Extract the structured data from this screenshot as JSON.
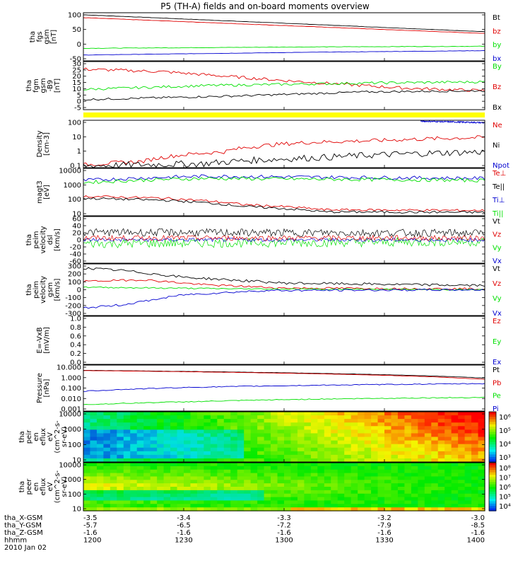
{
  "title": "P5 (TH-A) fields and on-board moments overview",
  "colors": {
    "black": "#000000",
    "red": "#e00000",
    "green": "#00e000",
    "blue": "#0000d0",
    "yellow": "#ffff00",
    "frame": "#000000"
  },
  "chart_data": [
    {
      "type": "line",
      "panel": "fgs",
      "ylabel": [
        "tha",
        "fgs",
        "gsm",
        "[nT]"
      ],
      "yticks": [
        "100",
        "50",
        "0",
        "-50"
      ],
      "ylim": [
        -60,
        105
      ],
      "legend": [
        {
          "name": "Bt",
          "color": "black"
        },
        {
          "name": "bz",
          "color": "red"
        },
        {
          "name": "by",
          "color": "green"
        },
        {
          "name": "bx",
          "color": "blue"
        }
      ],
      "series": [
        {
          "name": "Bt",
          "color": "black",
          "x": [
            0,
            1
          ],
          "y": [
            98,
            40
          ],
          "noise": 0.5
        },
        {
          "name": "bz",
          "color": "red",
          "x": [
            0,
            1
          ],
          "y": [
            88,
            34
          ],
          "noise": 0.5
        },
        {
          "name": "by",
          "color": "green",
          "x": [
            0,
            0.6,
            1
          ],
          "y": [
            -17,
            -12,
            -10
          ],
          "noise": 0.8
        },
        {
          "name": "bx",
          "color": "blue",
          "x": [
            0,
            0.6,
            1
          ],
          "y": [
            -40,
            -30,
            -25
          ],
          "noise": 0.5
        }
      ]
    },
    {
      "type": "line",
      "panel": "fgm",
      "ylabel": [
        "tha",
        "fgm",
        "gsm",
        "-B9",
        "[nT]"
      ],
      "yticks": [
        "30",
        "25",
        "20",
        "15",
        "10",
        "5",
        "0",
        "-5"
      ],
      "ylim": [
        -7,
        31
      ],
      "legend": [
        {
          "name": "By",
          "color": "green"
        },
        {
          "name": "Bz",
          "color": "red"
        },
        {
          "name": "Bx",
          "color": "black"
        }
      ],
      "series": [
        {
          "name": "Bz",
          "color": "red",
          "x": [
            0,
            0.2,
            0.5,
            0.8,
            1
          ],
          "y": [
            25,
            23,
            16,
            10,
            8
          ],
          "noise": 1.2
        },
        {
          "name": "By",
          "color": "green",
          "x": [
            0,
            0.3,
            0.7,
            1
          ],
          "y": [
            9,
            12,
            14,
            15
          ],
          "noise": 1.0
        },
        {
          "name": "Bx",
          "color": "black",
          "x": [
            0,
            0.4,
            0.7,
            1
          ],
          "y": [
            1,
            4,
            7,
            8
          ],
          "noise": 0.8
        }
      ]
    },
    {
      "type": "line",
      "panel": "density",
      "log": true,
      "ylabel": [
        "Density",
        "[cm-3]"
      ],
      "yticks": [
        "100",
        "10",
        "1",
        "0.1"
      ],
      "ylim": [
        0.05,
        200
      ],
      "legend": [
        {
          "name": "Ne",
          "color": "red"
        },
        {
          "name": "Ni",
          "color": "black"
        },
        {
          "name": "Npot",
          "color": "blue"
        }
      ],
      "series": [
        {
          "name": "Ne",
          "color": "red",
          "x": [
            0,
            0.15,
            0.35,
            0.55,
            0.75,
            1
          ],
          "y": [
            0.08,
            0.15,
            0.8,
            4,
            6,
            10
          ],
          "noise": 0.15
        },
        {
          "name": "Ni",
          "color": "black",
          "x": [
            0,
            0.3,
            0.6,
            1
          ],
          "y": [
            0.07,
            0.1,
            0.3,
            0.8
          ],
          "noise": 0.25
        },
        {
          "name": "Npot",
          "color": "blue",
          "x": [
            0.84,
            1
          ],
          "y": [
            170,
            130
          ],
          "noise": 0.05
        }
      ]
    },
    {
      "type": "line",
      "panel": "temperature",
      "log": true,
      "ylabel": [
        "magt3",
        "[eV]"
      ],
      "yticks": [
        "10000",
        "1000",
        "100",
        "10"
      ],
      "ylim": [
        7,
        12000
      ],
      "legend": [
        {
          "name": "Te⊥",
          "color": "red"
        },
        {
          "name": "Te||",
          "color": "black"
        },
        {
          "name": "Ti⊥",
          "color": "blue"
        },
        {
          "name": "Ti||",
          "color": "green"
        }
      ],
      "series": [
        {
          "name": "Ti⊥",
          "color": "blue",
          "x": [
            0,
            0.3,
            0.6,
            1
          ],
          "y": [
            1800,
            3500,
            3000,
            2500
          ],
          "noise": 0.12
        },
        {
          "name": "Ti||",
          "color": "green",
          "x": [
            0,
            0.3,
            0.6,
            1
          ],
          "y": [
            1300,
            2500,
            2200,
            1800
          ],
          "noise": 0.12
        },
        {
          "name": "Te⊥",
          "color": "red",
          "x": [
            0,
            0.2,
            0.4,
            0.6,
            1
          ],
          "y": [
            150,
            110,
            40,
            18,
            16
          ],
          "noise": 0.08
        },
        {
          "name": "Te||",
          "color": "black",
          "x": [
            0,
            0.2,
            0.4,
            0.6,
            1
          ],
          "y": [
            110,
            80,
            30,
            13,
            12
          ],
          "noise": 0.08
        }
      ]
    },
    {
      "type": "line",
      "panel": "peim",
      "ylabel": [
        "tha",
        "peim",
        "velocity",
        "dsl",
        "[km/s]"
      ],
      "yticks": [
        "60",
        "40",
        "20",
        "0",
        "-20",
        "-40",
        "-60"
      ],
      "ylim": [
        -62,
        62
      ],
      "legend": [
        {
          "name": "Vt",
          "color": "black"
        },
        {
          "name": "Vz",
          "color": "red"
        },
        {
          "name": "Vy",
          "color": "green"
        },
        {
          "name": "Vx",
          "color": "blue"
        }
      ],
      "series": [
        {
          "name": "Vy",
          "color": "green",
          "x": [
            0,
            1
          ],
          "y": [
            -10,
            -5
          ],
          "noise": 12
        },
        {
          "name": "Vx",
          "color": "blue",
          "x": [
            0,
            1
          ],
          "y": [
            0,
            0
          ],
          "noise": 5
        },
        {
          "name": "Vz",
          "color": "red",
          "x": [
            0,
            1
          ],
          "y": [
            5,
            5
          ],
          "noise": 7
        },
        {
          "name": "Vt",
          "color": "black",
          "x": [
            0,
            1
          ],
          "y": [
            20,
            18
          ],
          "noise": 10
        }
      ]
    },
    {
      "type": "line",
      "panel": "peir",
      "ylabel": [
        "tha",
        "peim",
        "velocity",
        "gsm",
        "[km/s]"
      ],
      "yticks": [
        "300",
        "200",
        "100",
        "0",
        "-100",
        "-200",
        "-300"
      ],
      "ylim": [
        -310,
        310
      ],
      "legend": [
        {
          "name": "Vt",
          "color": "black"
        },
        {
          "name": "Vz",
          "color": "red"
        },
        {
          "name": "Vy",
          "color": "green"
        },
        {
          "name": "Vx",
          "color": "blue"
        }
      ],
      "series": [
        {
          "name": "Vt",
          "color": "black",
          "x": [
            0,
            0.1,
            0.25,
            0.5,
            1
          ],
          "y": [
            260,
            230,
            150,
            80,
            50
          ],
          "noise": 15
        },
        {
          "name": "Vz",
          "color": "red",
          "x": [
            0,
            0.15,
            0.3,
            0.5,
            1
          ],
          "y": [
            100,
            120,
            60,
            20,
            10
          ],
          "noise": 12
        },
        {
          "name": "Vy",
          "color": "green",
          "x": [
            0,
            0.2,
            0.4,
            1
          ],
          "y": [
            30,
            20,
            10,
            0
          ],
          "noise": 8
        },
        {
          "name": "Vx",
          "color": "blue",
          "x": [
            0,
            0.1,
            0.25,
            0.45,
            1
          ],
          "y": [
            -220,
            -180,
            -60,
            -10,
            0
          ],
          "noise": 12
        }
      ]
    },
    {
      "type": "line",
      "panel": "efield",
      "ylabel": [
        "E=-VxB",
        "[mV/m]"
      ],
      "yticks": [
        "1.0",
        "0.8",
        "0.6",
        "0.4",
        "0.2",
        "0.0"
      ],
      "ylim": [
        0,
        1
      ],
      "legend": [
        {
          "name": "Ez",
          "color": "red"
        },
        {
          "name": "Ey",
          "color": "green"
        },
        {
          "name": "Ex",
          "color": "blue"
        }
      ],
      "series": []
    },
    {
      "type": "line",
      "panel": "pressure",
      "log": true,
      "ylabel": [
        "Pressure",
        "[nPa]"
      ],
      "yticks": [
        "10.000",
        "1.000",
        "0.100",
        "0.010",
        "0.001"
      ],
      "ylim": [
        0.0008,
        12
      ],
      "legend": [
        {
          "name": "Pt",
          "color": "black"
        },
        {
          "name": "Pb",
          "color": "red"
        },
        {
          "name": "Pe",
          "color": "green"
        },
        {
          "name": "Pi",
          "color": "blue"
        }
      ],
      "series": [
        {
          "name": "Pt",
          "color": "black",
          "x": [
            0,
            1
          ],
          "y": [
            4,
            0.8
          ],
          "noise": 0.01
        },
        {
          "name": "Pb",
          "color": "red",
          "x": [
            0,
            1
          ],
          "y": [
            3.8,
            0.6
          ],
          "noise": 0.01
        },
        {
          "name": "Pi",
          "color": "blue",
          "x": [
            0,
            0.3,
            0.6,
            1
          ],
          "y": [
            0.05,
            0.12,
            0.18,
            0.25
          ],
          "noise": 0.04
        },
        {
          "name": "Pe",
          "color": "green",
          "x": [
            0,
            0.3,
            0.6,
            1
          ],
          "y": [
            0.003,
            0.006,
            0.01,
            0.014
          ],
          "noise": 0.04
        }
      ]
    },
    {
      "type": "heatmap",
      "panel": "peir-spec",
      "ylabel": [
        "tha",
        "peir",
        "en",
        "eflux",
        "eV",
        "(cm^2-s-",
        "sr-eV)"
      ],
      "yticks": [
        "10000",
        "1000",
        "100",
        "10"
      ],
      "colorbar_labels": [
        "10⁶",
        "10⁵",
        "10⁴",
        "10³"
      ]
    },
    {
      "type": "heatmap",
      "panel": "peer-spec",
      "ylabel": [
        "tha",
        "peer",
        "en",
        "eflux",
        "eV",
        "(cm^2-s-",
        "sr-eV)"
      ],
      "yticks": [
        "10000",
        "1000",
        "100",
        "10"
      ],
      "colorbar_labels": [
        "10⁸",
        "10⁷",
        "10⁶",
        "10⁵",
        "10⁴"
      ]
    }
  ],
  "xaxis": {
    "rows": [
      {
        "label": "tha_X-GSM",
        "values": [
          "-3.5",
          "-3.4",
          "-3.3",
          "-3.2",
          "-3.0"
        ]
      },
      {
        "label": "tha_Y-GSM",
        "values": [
          "-5.7",
          "-6.5",
          "-7.2",
          "-7.9",
          "-8.5"
        ]
      },
      {
        "label": "tha_Z-GSM",
        "values": [
          "-1.6",
          "-1.6",
          "-1.6",
          "-1.6",
          "-1.6"
        ]
      },
      {
        "label": "hhmm",
        "values": [
          "1200",
          "1230",
          "1300",
          "1330",
          "1400"
        ]
      }
    ],
    "date": "2010 Jan 02"
  }
}
